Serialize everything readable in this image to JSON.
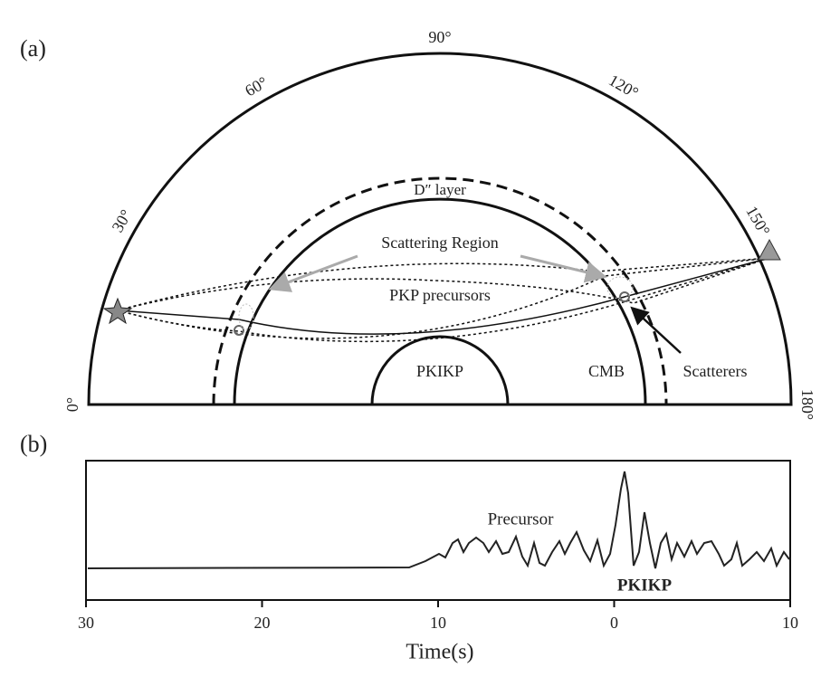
{
  "panel_a": {
    "label": "(a)",
    "angles": [
      {
        "value": 0,
        "label": "0°"
      },
      {
        "value": 30,
        "label": "30°"
      },
      {
        "value": 60,
        "label": "60°"
      },
      {
        "value": 90,
        "label": "90°"
      },
      {
        "value": 120,
        "label": "120°"
      },
      {
        "value": 150,
        "label": "150°"
      },
      {
        "value": 180,
        "label": "180°"
      }
    ],
    "d_layer": "D″ layer",
    "scattering_region": "Scattering Region",
    "pkp_precursors": "PKP precursors",
    "pkikp": "PKIKP",
    "cmb": "CMB",
    "scatterers": "Scatterers"
  },
  "panel_b": {
    "label": "(b)",
    "xlabel": "Time(s)",
    "xlim": [
      -30,
      10
    ],
    "xticks": [
      {
        "value": -30,
        "label": "30"
      },
      {
        "value": -20,
        "label": "20"
      },
      {
        "value": -10,
        "label": "10"
      },
      {
        "value": 0,
        "label": "0"
      },
      {
        "value": 10,
        "label": "10"
      }
    ],
    "precursor": "Precursor",
    "pkikp": "PKIKP"
  }
}
